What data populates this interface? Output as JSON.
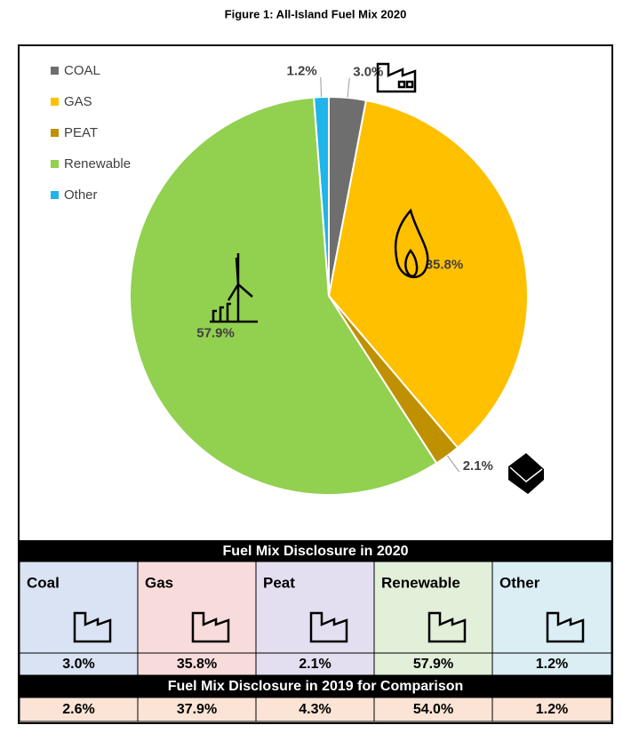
{
  "chart_data": {
    "type": "pie",
    "title": "Figure 1: All-Island Fuel Mix 2020",
    "categories": [
      "COAL",
      "GAS",
      "PEAT",
      "Renewable",
      "Other"
    ],
    "values": [
      3.0,
      35.8,
      2.1,
      57.9,
      1.2
    ],
    "value_labels": [
      "3.0%",
      "35.8%",
      "2.1%",
      "57.9%",
      "1.2%"
    ],
    "colors": [
      "#6e6e6e",
      "#ffc000",
      "#bf9000",
      "#92d050",
      "#1fb4ea"
    ],
    "legend": "top-left"
  },
  "table": {
    "title": "Fuel Mix Disclosure in 2020",
    "headers": [
      "Coal",
      "Gas",
      "Peat",
      "Renewable",
      "Other"
    ],
    "values_2020": [
      "3.0%",
      "35.8%",
      "2.1%",
      "57.9%",
      "1.2%"
    ],
    "comparison_title": "Fuel Mix Disclosure in 2019 for Comparison",
    "values_2019": [
      "2.6%",
      "37.9%",
      "4.3%",
      "54.0%",
      "1.2%"
    ]
  }
}
